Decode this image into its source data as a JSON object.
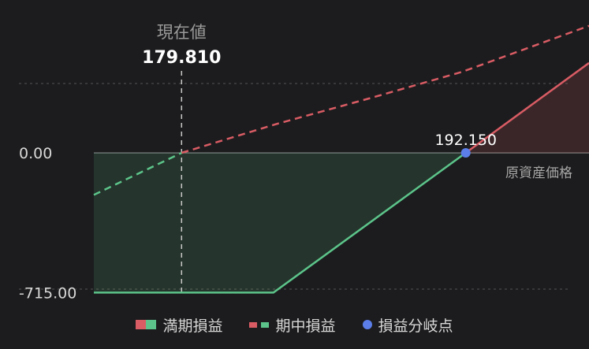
{
  "chart_data": {
    "type": "line",
    "x_label": "原資産価格",
    "current_value_label": "現在値",
    "current_value": 179.81,
    "current_value_text": "179.810",
    "breakeven": 192.15,
    "breakeven_text": "192.150",
    "y_ticks": [
      {
        "value": 0,
        "label": "0.00"
      },
      {
        "value": -715,
        "label": "-715.00"
      }
    ],
    "x_range": [
      176.0,
      197.5
    ],
    "y_range": [
      -810,
      500
    ],
    "series": [
      {
        "name": "満期損益",
        "style": "solid",
        "points": [
          [
            176.0,
            -715
          ],
          [
            183.8,
            -715
          ],
          [
            192.15,
            0
          ],
          [
            197.5,
            460
          ]
        ]
      },
      {
        "name": "期中損益",
        "style": "dashed",
        "points": [
          [
            176.0,
            -215
          ],
          [
            179.81,
            0
          ],
          [
            184.0,
            150
          ],
          [
            188.0,
            280
          ],
          [
            192.0,
            415
          ],
          [
            197.5,
            650
          ]
        ]
      }
    ],
    "legend": [
      {
        "label": "満期損益",
        "kind": "solid-pair",
        "colors": [
          "#d95c64",
          "#5cc48a"
        ]
      },
      {
        "label": "期中損益",
        "kind": "dash-pair",
        "colors": [
          "#d95c64",
          "#5cc48a"
        ]
      },
      {
        "label": "損益分岐点",
        "kind": "dot",
        "colors": [
          "#5b7ee8"
        ]
      }
    ],
    "colors": {
      "profit": "#d95c64",
      "loss": "#5cc48a",
      "breakeven_dot": "#5b7ee8",
      "grid": "#555555",
      "zero_line": "#8a8a8a"
    }
  }
}
